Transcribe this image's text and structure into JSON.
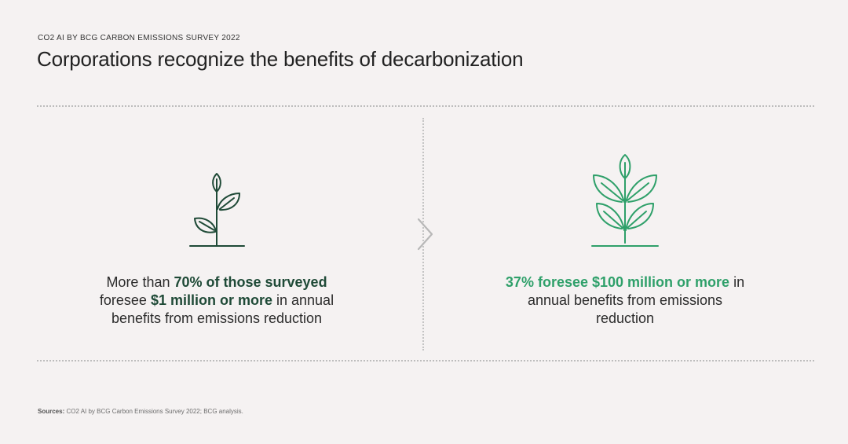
{
  "header": {
    "eyebrow": "CO2 AI BY BCG CARBON EMISSIONS SURVEY 2022",
    "title": "Corporations recognize the benefits of decarbonization"
  },
  "left_panel": {
    "icon": "small-plant-icon",
    "text_pre": "More than ",
    "text_bold_1": "70% of those surveyed",
    "text_mid": "foresee ",
    "text_bold_2": "$1 million or more",
    "text_post": " in annual benefits from emissions reduction"
  },
  "divider": {
    "icon": "chevron-right-icon"
  },
  "right_panel": {
    "icon": "large-plant-icon",
    "text_bold": "37% foresee $100 million or more",
    "text_post": " in annual benefits from emissions reduction"
  },
  "footer": {
    "sources_label": "Sources:",
    "sources_text": " CO2 AI by BCG Carbon Emissions Survey 2022; BCG analysis."
  },
  "colors": {
    "background": "#f5f2f2",
    "dark_green": "#1f4a37",
    "bright_green": "#2fa06a",
    "divider": "#bdbdbd"
  }
}
